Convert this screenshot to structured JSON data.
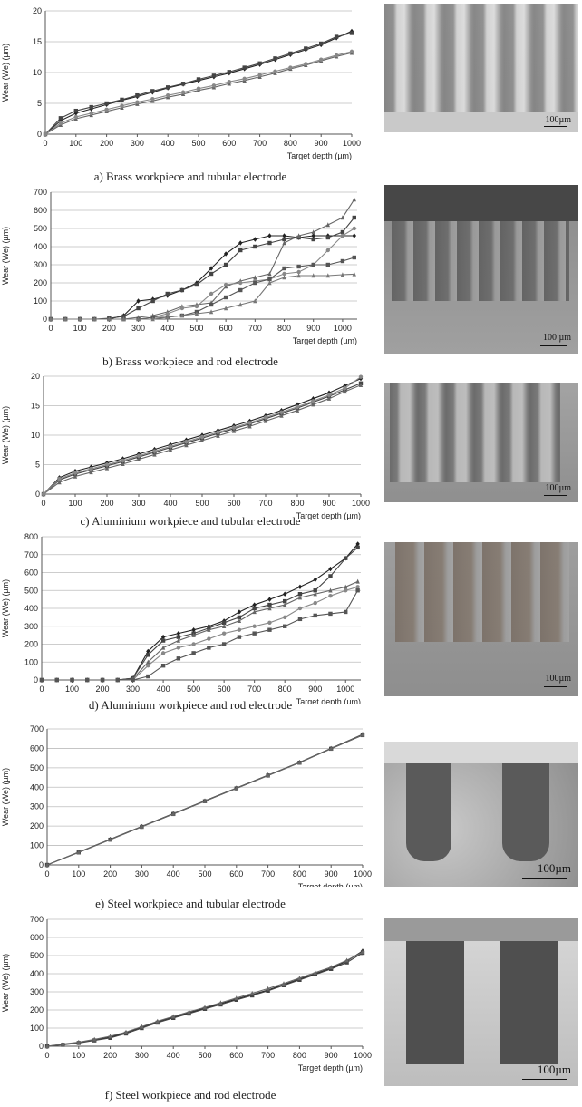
{
  "chart_data": [
    {
      "type": "line",
      "xlabel": "Target depth (µm)",
      "ylabel": "Wear (We) (µm)",
      "xlim": [
        0,
        1000
      ],
      "ylim": [
        0,
        20
      ],
      "xticks": [
        0,
        100,
        200,
        300,
        400,
        500,
        600,
        700,
        800,
        900,
        1000
      ],
      "yticks": [
        0,
        5,
        10,
        15,
        20
      ],
      "grid": "horizontal",
      "caption": "a) Brass workpiece and tubular electrode",
      "photo_scale": "100µm",
      "x": [
        0,
        50,
        100,
        150,
        200,
        250,
        300,
        350,
        400,
        450,
        500,
        550,
        600,
        650,
        700,
        750,
        800,
        850,
        900,
        950,
        1000
      ],
      "series": [
        {
          "values": [
            0,
            2.2,
            3.4,
            4.1,
            4.8,
            5.5,
            6.1,
            6.8,
            7.5,
            8.1,
            8.7,
            9.3,
            9.9,
            10.6,
            11.3,
            12.1,
            12.9,
            13.7,
            14.5,
            15.6,
            16.7
          ]
        },
        {
          "values": [
            0,
            2.6,
            3.8,
            4.4,
            5.0,
            5.6,
            6.3,
            7.0,
            7.6,
            8.2,
            8.9,
            9.5,
            10.1,
            10.8,
            11.5,
            12.3,
            13.1,
            13.9,
            14.7,
            15.8,
            16.4
          ]
        },
        {
          "values": [
            0,
            1.5,
            2.5,
            3.1,
            3.7,
            4.3,
            4.9,
            5.4,
            6.0,
            6.5,
            7.1,
            7.6,
            8.2,
            8.7,
            9.3,
            9.9,
            10.6,
            11.2,
            11.9,
            12.6,
            13.2
          ]
        },
        {
          "values": [
            0,
            1.8,
            2.8,
            3.4,
            4.0,
            4.6,
            5.2,
            5.7,
            6.3,
            6.8,
            7.4,
            7.9,
            8.5,
            9.0,
            9.6,
            10.2,
            10.8,
            11.4,
            12.1,
            12.8,
            13.4
          ]
        }
      ]
    },
    {
      "type": "line",
      "xlabel": "Target depth (µm)",
      "ylabel": "Wear (We) (µm)",
      "xlim": [
        0,
        1050
      ],
      "ylim": [
        0,
        700
      ],
      "xticks": [
        0,
        100,
        200,
        300,
        400,
        500,
        600,
        700,
        800,
        900,
        1000
      ],
      "yticks": [
        0,
        100,
        200,
        300,
        400,
        500,
        600,
        700
      ],
      "grid": "horizontal",
      "caption": "b) Brass workpiece and rod electrode",
      "photo_scale": "100 µm",
      "x": [
        0,
        50,
        100,
        150,
        200,
        250,
        300,
        350,
        400,
        450,
        500,
        550,
        600,
        650,
        700,
        750,
        800,
        850,
        900,
        950,
        1000,
        1040
      ],
      "series": [
        {
          "values": [
            0,
            0,
            0,
            0,
            0,
            20,
            100,
            110,
            130,
            160,
            200,
            280,
            360,
            420,
            440,
            460,
            460,
            450,
            460,
            460,
            460,
            460
          ]
        },
        {
          "values": [
            0,
            0,
            0,
            0,
            5,
            15,
            60,
            100,
            140,
            160,
            190,
            250,
            300,
            380,
            400,
            420,
            440,
            450,
            440,
            450,
            480,
            560
          ]
        },
        {
          "values": [
            0,
            0,
            0,
            0,
            0,
            0,
            10,
            20,
            40,
            70,
            80,
            90,
            180,
            210,
            230,
            250,
            420,
            460,
            480,
            520,
            560,
            660
          ]
        },
        {
          "values": [
            0,
            0,
            0,
            0,
            0,
            0,
            0,
            10,
            30,
            60,
            70,
            140,
            190,
            200,
            210,
            220,
            250,
            260,
            300,
            380,
            460,
            500
          ]
        },
        {
          "values": [
            0,
            0,
            0,
            0,
            0,
            0,
            0,
            10,
            10,
            20,
            40,
            80,
            120,
            160,
            200,
            220,
            280,
            290,
            300,
            300,
            320,
            340
          ]
        },
        {
          "values": [
            0,
            0,
            0,
            0,
            0,
            0,
            0,
            0,
            10,
            20,
            30,
            40,
            60,
            80,
            100,
            200,
            230,
            240,
            240,
            240,
            245,
            248
          ]
        }
      ]
    },
    {
      "type": "line",
      "xlabel": "Target depth (µm)",
      "ylabel": "Wear (We) (µm)",
      "xlim": [
        0,
        1000
      ],
      "ylim": [
        0,
        20
      ],
      "xticks": [
        0,
        100,
        200,
        300,
        400,
        500,
        600,
        700,
        800,
        900,
        1000
      ],
      "yticks": [
        0,
        5,
        10,
        15,
        20
      ],
      "grid": "horizontal",
      "caption": "c) Aluminium workpiece and tubular electrode",
      "photo_scale": "100µm",
      "x": [
        0,
        50,
        100,
        150,
        200,
        250,
        300,
        350,
        400,
        450,
        500,
        550,
        600,
        650,
        700,
        750,
        800,
        850,
        900,
        950,
        1000
      ],
      "series": [
        {
          "values": [
            0,
            2.8,
            3.9,
            4.6,
            5.3,
            6.0,
            6.8,
            7.6,
            8.4,
            9.2,
            10.0,
            10.8,
            11.6,
            12.4,
            13.3,
            14.2,
            15.2,
            16.2,
            17.2,
            18.4,
            19.6
          ]
        },
        {
          "values": [
            0,
            2.4,
            3.4,
            4.1,
            4.8,
            5.5,
            6.3,
            7.1,
            7.9,
            8.7,
            9.5,
            10.3,
            11.1,
            11.9,
            12.8,
            13.7,
            14.6,
            15.6,
            16.6,
            17.7,
            18.8
          ]
        },
        {
          "values": [
            0,
            2.0,
            3.0,
            3.7,
            4.4,
            5.1,
            5.9,
            6.7,
            7.5,
            8.3,
            9.1,
            9.9,
            10.7,
            11.5,
            12.4,
            13.3,
            14.2,
            15.2,
            16.2,
            17.4,
            18.5
          ]
        },
        {
          "values": [
            0,
            2.6,
            3.6,
            4.3,
            5.0,
            5.7,
            6.5,
            7.3,
            8.1,
            8.9,
            9.7,
            10.5,
            11.3,
            12.1,
            13.0,
            13.9,
            14.8,
            15.8,
            16.8,
            18.0,
            19.9
          ]
        }
      ]
    },
    {
      "type": "line",
      "xlabel": "Target depth (µm)",
      "ylabel": "Wear (We) (µm)",
      "xlim": [
        0,
        1050
      ],
      "ylim": [
        0,
        800
      ],
      "xticks": [
        0,
        100,
        200,
        300,
        400,
        500,
        600,
        700,
        800,
        900,
        1000
      ],
      "yticks": [
        0,
        100,
        200,
        300,
        400,
        500,
        600,
        700,
        800
      ],
      "grid": "horizontal",
      "caption": "d) Aluminium workpiece and rod electrode",
      "photo_scale": "100µm",
      "x": [
        0,
        50,
        100,
        150,
        200,
        250,
        300,
        350,
        400,
        450,
        500,
        550,
        600,
        650,
        700,
        750,
        800,
        850,
        900,
        950,
        1000,
        1040
      ],
      "series": [
        {
          "values": [
            0,
            0,
            0,
            0,
            0,
            0,
            10,
            160,
            240,
            260,
            280,
            300,
            330,
            380,
            420,
            450,
            480,
            520,
            560,
            620,
            680,
            760
          ]
        },
        {
          "values": [
            0,
            0,
            0,
            0,
            0,
            0,
            10,
            140,
            220,
            240,
            260,
            290,
            320,
            350,
            400,
            420,
            440,
            480,
            500,
            580,
            680,
            740
          ]
        },
        {
          "values": [
            0,
            0,
            0,
            0,
            0,
            0,
            5,
            100,
            180,
            220,
            250,
            280,
            300,
            330,
            380,
            400,
            420,
            460,
            480,
            500,
            520,
            550
          ]
        },
        {
          "values": [
            0,
            0,
            0,
            0,
            0,
            0,
            0,
            80,
            150,
            180,
            200,
            230,
            260,
            280,
            300,
            320,
            350,
            400,
            430,
            470,
            500,
            520
          ]
        },
        {
          "values": [
            0,
            0,
            0,
            0,
            0,
            0,
            0,
            20,
            80,
            120,
            150,
            180,
            200,
            240,
            260,
            280,
            300,
            340,
            360,
            370,
            380,
            500
          ]
        }
      ]
    },
    {
      "type": "line",
      "xlabel": "Target depth (µm)",
      "ylabel": "Wear (We) (µm)",
      "xlim": [
        0,
        1000
      ],
      "ylim": [
        0,
        700
      ],
      "xticks": [
        0,
        100,
        200,
        300,
        400,
        500,
        600,
        700,
        800,
        900,
        1000
      ],
      "yticks": [
        0,
        100,
        200,
        300,
        400,
        500,
        600,
        700
      ],
      "grid": "horizontal",
      "caption": "e) Steel workpiece and tubular electrode",
      "photo_scale": "100µm",
      "x": [
        0,
        100,
        200,
        300,
        400,
        500,
        600,
        700,
        800,
        900,
        1000
      ],
      "series": [
        {
          "values": [
            0,
            66,
            132,
            198,
            264,
            330,
            396,
            462,
            528,
            600,
            672
          ]
        },
        {
          "values": [
            0,
            64,
            130,
            196,
            262,
            328,
            394,
            460,
            526,
            598,
            668
          ]
        },
        {
          "values": [
            0,
            65,
            131,
            197,
            263,
            329,
            395,
            461,
            527,
            599,
            670
          ]
        }
      ]
    },
    {
      "type": "line",
      "xlabel": "Target depth (µm)",
      "ylabel": "Wear (We) (µm)",
      "xlim": [
        0,
        1000
      ],
      "ylim": [
        0,
        700
      ],
      "xticks": [
        0,
        100,
        200,
        300,
        400,
        500,
        600,
        700,
        800,
        900,
        1000
      ],
      "yticks": [
        0,
        100,
        200,
        300,
        400,
        500,
        600,
        700
      ],
      "grid": "horizontal",
      "caption": "f) Steel workpiece and rod electrode",
      "photo_scale": "100µm",
      "x": [
        0,
        50,
        100,
        150,
        200,
        250,
        300,
        350,
        400,
        450,
        500,
        550,
        600,
        650,
        700,
        750,
        800,
        850,
        900,
        950,
        1000
      ],
      "series": [
        {
          "values": [
            0,
            10,
            20,
            35,
            50,
            75,
            105,
            135,
            160,
            185,
            210,
            235,
            260,
            285,
            310,
            340,
            370,
            400,
            430,
            470,
            525
          ]
        },
        {
          "values": [
            0,
            8,
            18,
            32,
            46,
            70,
            100,
            130,
            156,
            180,
            206,
            230,
            256,
            280,
            306,
            336,
            366,
            396,
            426,
            462,
            515
          ]
        },
        {
          "values": [
            0,
            12,
            22,
            38,
            55,
            78,
            108,
            138,
            164,
            190,
            214,
            240,
            266,
            292,
            318,
            346,
            376,
            406,
            436,
            474,
            520
          ]
        }
      ]
    }
  ]
}
